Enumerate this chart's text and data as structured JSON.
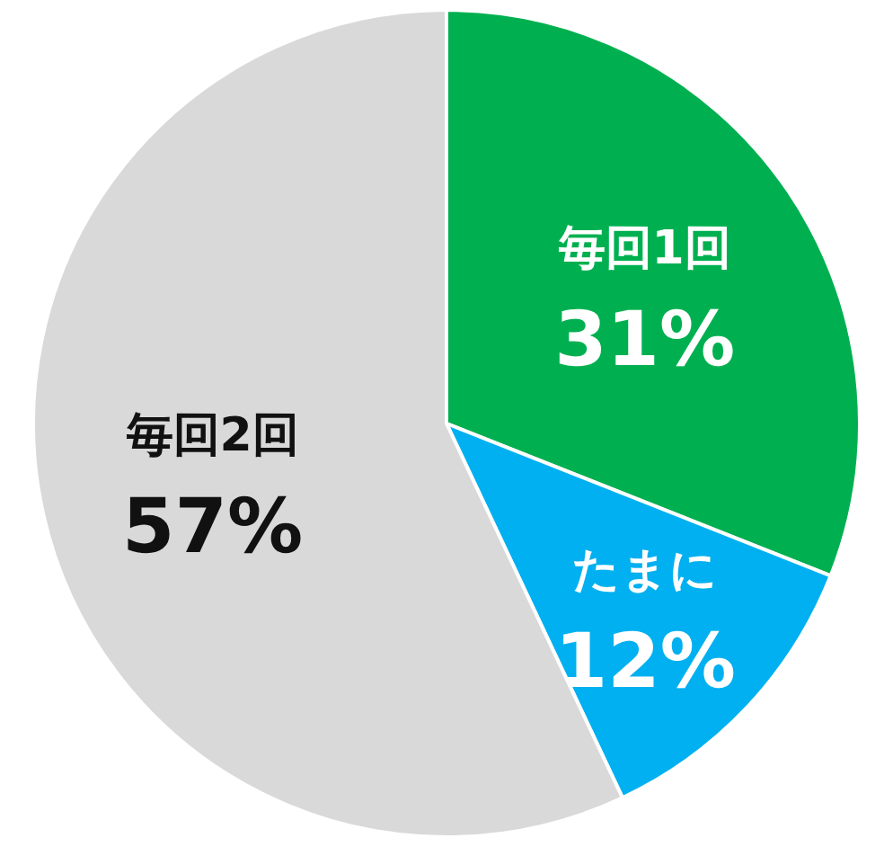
{
  "chart_data": {
    "type": "pie",
    "categories": [
      "毎回1回",
      "たまに",
      "毎回2回"
    ],
    "values": [
      31,
      12,
      57
    ],
    "colors": [
      "#00b050",
      "#00b0f0",
      "#d9d9d9"
    ],
    "value_labels": [
      "31%",
      "12%",
      "57%"
    ]
  }
}
